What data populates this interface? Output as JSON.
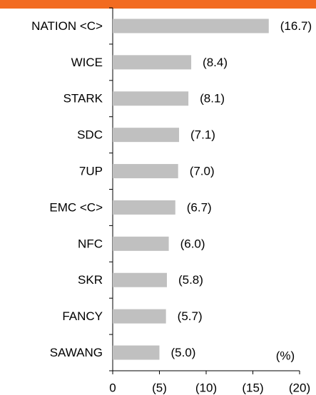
{
  "chart_data": {
    "type": "barh",
    "categories": [
      "NATION <C>",
      "WICE",
      "STARK",
      "SDC",
      "7UP",
      "EMC <C>",
      "NFC",
      "SKR",
      "FANCY",
      "SAWANG"
    ],
    "values": [
      -16.7,
      -8.4,
      -8.1,
      -7.1,
      -7.0,
      -6.7,
      -6.0,
      -5.8,
      -5.7,
      -5.0
    ],
    "value_labels": [
      "(16.7)",
      "(8.4)",
      "(8.1)",
      "(7.1)",
      "(7.0)",
      "(6.7)",
      "(6.0)",
      "(5.8)",
      "(5.7)",
      "(5.0)"
    ],
    "color": "#c0c0c0",
    "xlim": [
      0,
      -20
    ],
    "xticks": [
      0,
      {
        "value": -5,
        "label": "(5)"
      },
      {
        "value": -10,
        "label": "(10)"
      },
      {
        "value": -15,
        "label": "(15)"
      },
      {
        "value": -20,
        "label": "(20)"
      }
    ],
    "annotation": "(%)"
  }
}
